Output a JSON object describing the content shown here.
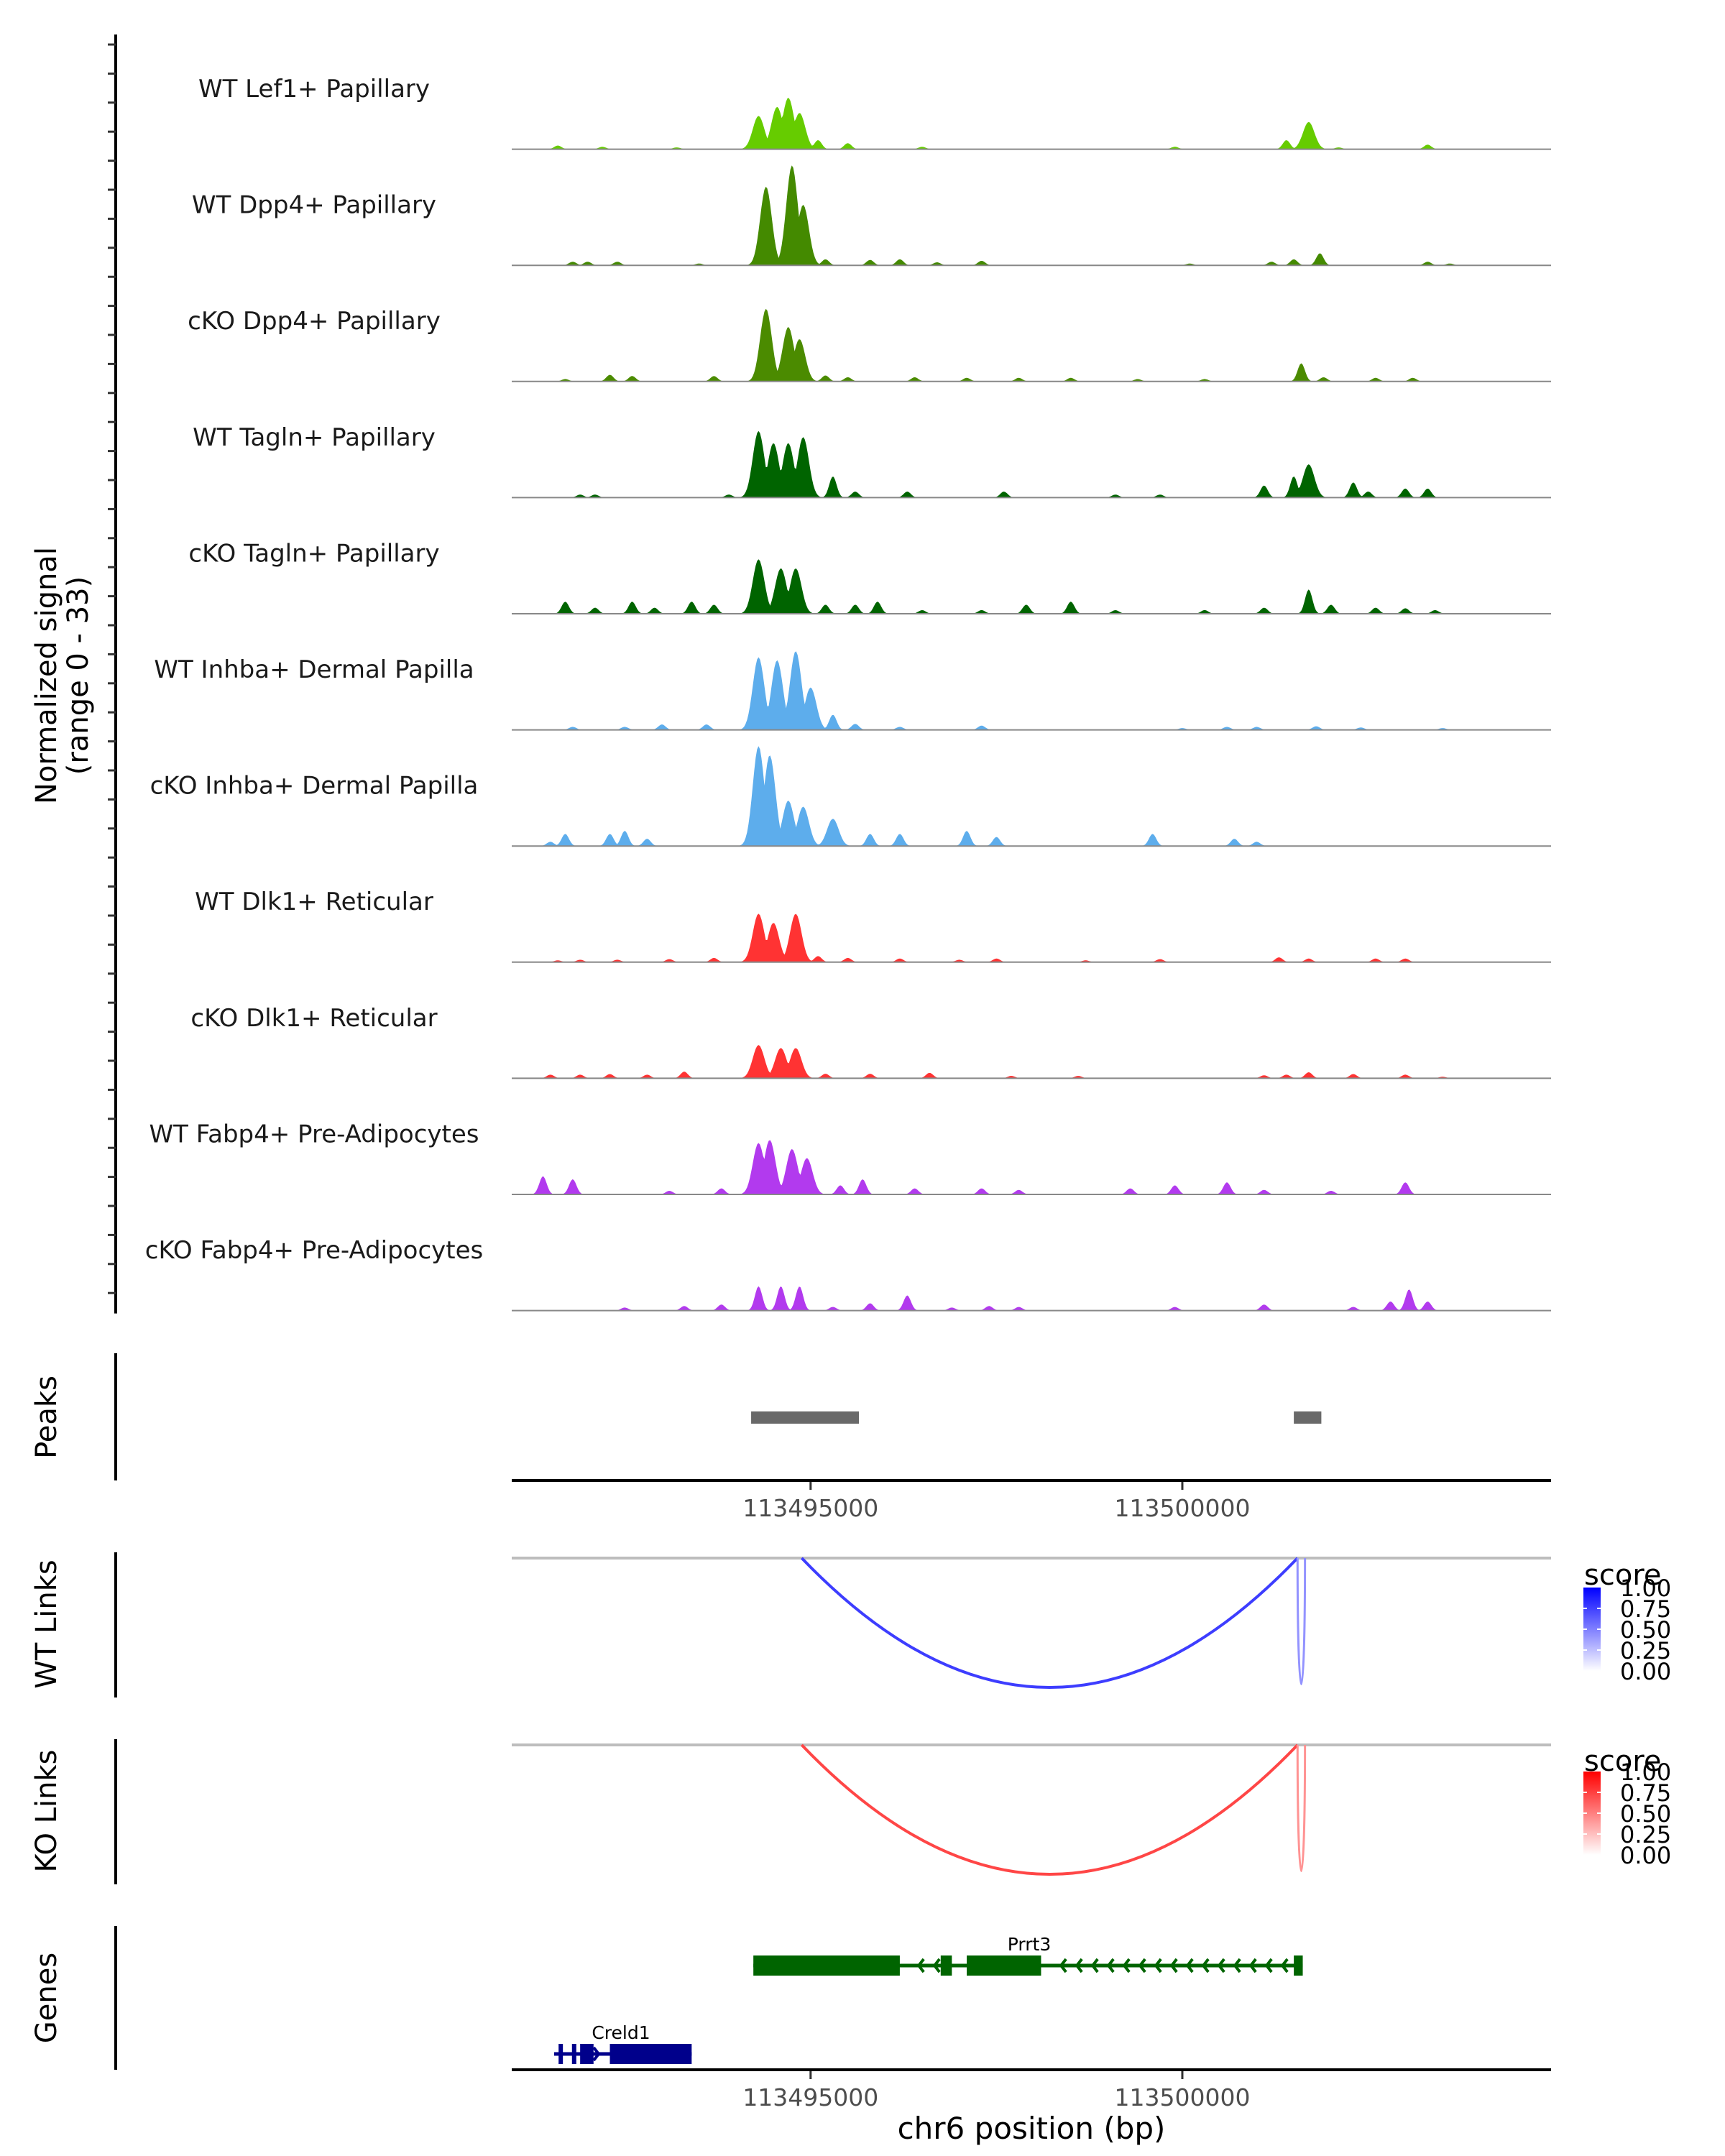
{
  "chart_data": {
    "type": "area",
    "title": "",
    "region": {
      "chrom": "chr6",
      "start": 113490980,
      "end": 113504960
    },
    "xlabel": "chr6 position (bp)",
    "x_ticks": [
      113495000,
      113500000
    ],
    "x_tick_labels": [
      "113495000",
      "113500000"
    ],
    "coverage": {
      "ylabel": "Normalized signal\n(range 0 - 33)",
      "ylabel_line1": "Normalized signal",
      "ylabel_line2": "(range 0 - 33)",
      "ylim": [
        0,
        33
      ],
      "tracks": [
        {
          "name": "WT Lef1+ Papillary",
          "color": "#66CC00",
          "peaks": [
            [
              113491600,
              1.2
            ],
            [
              113492200,
              0.8
            ],
            [
              113493200,
              0.6
            ],
            [
              113494300,
              11
            ],
            [
              113494550,
              14
            ],
            [
              113494700,
              17
            ],
            [
              113494850,
              12
            ],
            [
              113495100,
              3
            ],
            [
              113495500,
              2
            ],
            [
              113496500,
              0.8
            ],
            [
              113499900,
              0.8
            ],
            [
              113501400,
              3
            ],
            [
              113501700,
              9
            ],
            [
              113502100,
              0.6
            ],
            [
              113503300,
              1.5
            ]
          ]
        },
        {
          "name": "WT Dpp4+ Papillary",
          "color": "#448A00",
          "peaks": [
            [
              113491800,
              1.2
            ],
            [
              113492000,
              1.2
            ],
            [
              113492400,
              1.2
            ],
            [
              113493500,
              0.6
            ],
            [
              113494400,
              26
            ],
            [
              113494750,
              33
            ],
            [
              113494900,
              20
            ],
            [
              113495200,
              2
            ],
            [
              113495800,
              1.8
            ],
            [
              113496200,
              2
            ],
            [
              113496700,
              1
            ],
            [
              113497300,
              1.5
            ],
            [
              113500100,
              0.6
            ],
            [
              113501200,
              1.2
            ],
            [
              113501500,
              2
            ],
            [
              113501850,
              4
            ],
            [
              113503300,
              1.2
            ],
            [
              113503600,
              0.6
            ]
          ]
        },
        {
          "name": "cKO Dpp4+ Papillary",
          "color": "#4B8B00",
          "peaks": [
            [
              113491700,
              0.8
            ],
            [
              113492300,
              2.2
            ],
            [
              113492600,
              1.8
            ],
            [
              113493700,
              1.8
            ],
            [
              113494400,
              24
            ],
            [
              113494700,
              18
            ],
            [
              113494850,
              14
            ],
            [
              113495200,
              2
            ],
            [
              113495500,
              1.4
            ],
            [
              113496400,
              1.4
            ],
            [
              113497100,
              1.2
            ],
            [
              113497800,
              1.2
            ],
            [
              113498500,
              1.2
            ],
            [
              113499400,
              0.8
            ],
            [
              113500300,
              0.8
            ],
            [
              113501600,
              6
            ],
            [
              113501900,
              1.4
            ],
            [
              113502600,
              1.2
            ],
            [
              113503100,
              1.2
            ]
          ]
        },
        {
          "name": "WT Tagln+ Papillary",
          "color": "#006400",
          "peaks": [
            [
              113491900,
              1
            ],
            [
              113492100,
              1
            ],
            [
              113493900,
              1
            ],
            [
              113494300,
              22
            ],
            [
              113494500,
              18
            ],
            [
              113494700,
              18
            ],
            [
              113494900,
              20
            ],
            [
              113495300,
              7
            ],
            [
              113495600,
              2
            ],
            [
              113496300,
              2
            ],
            [
              113497600,
              2
            ],
            [
              113499100,
              1
            ],
            [
              113499700,
              1
            ],
            [
              113501100,
              4
            ],
            [
              113501500,
              7
            ],
            [
              113501700,
              11
            ],
            [
              113502300,
              5
            ],
            [
              113502500,
              2
            ],
            [
              113503000,
              3
            ],
            [
              113503300,
              3
            ]
          ]
        },
        {
          "name": "cKO Tagln+ Papillary",
          "color": "#006400",
          "peaks": [
            [
              113491700,
              4
            ],
            [
              113492100,
              2
            ],
            [
              113492600,
              4
            ],
            [
              113492900,
              2
            ],
            [
              113493400,
              4
            ],
            [
              113493700,
              3
            ],
            [
              113494300,
              18
            ],
            [
              113494600,
              15
            ],
            [
              113494800,
              15
            ],
            [
              113495200,
              3
            ],
            [
              113495600,
              3
            ],
            [
              113495900,
              4
            ],
            [
              113496500,
              1.2
            ],
            [
              113497300,
              1.2
            ],
            [
              113497900,
              3
            ],
            [
              113498500,
              4
            ],
            [
              113499100,
              1.2
            ],
            [
              113500300,
              1.2
            ],
            [
              113501100,
              2
            ],
            [
              113501700,
              8
            ],
            [
              113502000,
              3
            ],
            [
              113502600,
              2
            ],
            [
              113503000,
              1.8
            ],
            [
              113503400,
              1.2
            ]
          ]
        },
        {
          "name": "WT Inhba+ Dermal Papilla",
          "color": "#5DADEC",
          "peaks": [
            [
              113491800,
              1
            ],
            [
              113492500,
              1
            ],
            [
              113493000,
              1.8
            ],
            [
              113493600,
              1.8
            ],
            [
              113494300,
              24
            ],
            [
              113494550,
              23
            ],
            [
              113494800,
              26
            ],
            [
              113495000,
              14
            ],
            [
              113495300,
              5
            ],
            [
              113495600,
              2
            ],
            [
              113496200,
              1
            ],
            [
              113497300,
              1.4
            ],
            [
              113500000,
              0.6
            ],
            [
              113500600,
              1
            ],
            [
              113501000,
              1
            ],
            [
              113501800,
              1.2
            ],
            [
              113502400,
              0.8
            ],
            [
              113503500,
              0.6
            ]
          ]
        },
        {
          "name": "cKO Inhba+ Dermal Papilla",
          "color": "#5DADEC",
          "peaks": [
            [
              113491500,
              1.4
            ],
            [
              113491700,
              4
            ],
            [
              113492300,
              4
            ],
            [
              113492500,
              5
            ],
            [
              113492800,
              2.4
            ],
            [
              113494300,
              33
            ],
            [
              113494450,
              30
            ],
            [
              113494700,
              15
            ],
            [
              113494900,
              13
            ],
            [
              113495300,
              9
            ],
            [
              113495800,
              4
            ],
            [
              113496200,
              4
            ],
            [
              113497100,
              5
            ],
            [
              113497500,
              3
            ],
            [
              113499600,
              4
            ],
            [
              113500700,
              2.4
            ],
            [
              113501000,
              1.4
            ]
          ]
        },
        {
          "name": "WT Dlk1+ Reticular",
          "color": "#FF3333",
          "peaks": [
            [
              113491600,
              0.6
            ],
            [
              113491900,
              0.8
            ],
            [
              113492400,
              0.8
            ],
            [
              113493100,
              1
            ],
            [
              113493700,
              1.4
            ],
            [
              113494300,
              16
            ],
            [
              113494500,
              13
            ],
            [
              113494800,
              16
            ],
            [
              113495100,
              2
            ],
            [
              113495500,
              1.4
            ],
            [
              113496200,
              1.2
            ],
            [
              113497000,
              0.8
            ],
            [
              113497500,
              1.2
            ],
            [
              113498700,
              0.6
            ],
            [
              113499700,
              1
            ],
            [
              113501300,
              1.6
            ],
            [
              113501700,
              1.2
            ],
            [
              113502600,
              1.2
            ],
            [
              113503000,
              1.2
            ]
          ]
        },
        {
          "name": "cKO Dlk1+ Reticular",
          "color": "#FF3333",
          "peaks": [
            [
              113491500,
              1.2
            ],
            [
              113491900,
              1.2
            ],
            [
              113492300,
              1.4
            ],
            [
              113492800,
              1.2
            ],
            [
              113493300,
              2.2
            ],
            [
              113494300,
              11
            ],
            [
              113494600,
              10
            ],
            [
              113494800,
              10
            ],
            [
              113495200,
              1.5
            ],
            [
              113495800,
              1.5
            ],
            [
              113496600,
              1.8
            ],
            [
              113497700,
              0.8
            ],
            [
              113498600,
              0.8
            ],
            [
              113501100,
              1
            ],
            [
              113501400,
              1.2
            ],
            [
              113501700,
              2
            ],
            [
              113502300,
              1.4
            ],
            [
              113503000,
              1.2
            ],
            [
              113503500,
              0.5
            ]
          ]
        },
        {
          "name": "WT Fabp4+ Pre-Adipocytes",
          "color": "#B23AEE",
          "peaks": [
            [
              113491400,
              6
            ],
            [
              113491800,
              5
            ],
            [
              113493100,
              1.2
            ],
            [
              113493800,
              2
            ],
            [
              113494300,
              17
            ],
            [
              113494450,
              18
            ],
            [
              113494750,
              15
            ],
            [
              113494950,
              12
            ],
            [
              113495400,
              3
            ],
            [
              113495700,
              5
            ],
            [
              113496400,
              2
            ],
            [
              113497300,
              2
            ],
            [
              113497800,
              1.5
            ],
            [
              113499300,
              2
            ],
            [
              113499900,
              3
            ],
            [
              113500600,
              4
            ],
            [
              113501100,
              1.5
            ],
            [
              113502000,
              1.2
            ],
            [
              113503000,
              4
            ]
          ]
        },
        {
          "name": "cKO Fabp4+ Pre-Adipocytes",
          "color": "#B23AEE",
          "peaks": [
            [
              113492500,
              1
            ],
            [
              113493300,
              1.5
            ],
            [
              113493800,
              2
            ],
            [
              113494300,
              8
            ],
            [
              113494600,
              8
            ],
            [
              113494850,
              8
            ],
            [
              113495300,
              1.2
            ],
            [
              113495800,
              2.4
            ],
            [
              113496300,
              5
            ],
            [
              113496900,
              1
            ],
            [
              113497400,
              1.5
            ],
            [
              113497800,
              1.2
            ],
            [
              113499900,
              1.2
            ],
            [
              113501100,
              2
            ],
            [
              113502300,
              1.2
            ],
            [
              113502800,
              3
            ],
            [
              113503050,
              7
            ],
            [
              113503300,
              3
            ]
          ]
        }
      ]
    },
    "peaks": {
      "label": "Peaks",
      "color": "#696969",
      "intervals": [
        [
          113494200,
          113495650
        ],
        [
          113501500,
          113501870
        ]
      ]
    },
    "links": [
      {
        "label": "WT Links",
        "legend_title": "score",
        "color_high": "#0000FF",
        "color_low": "#FFFFFF",
        "legend_ticks": [
          "1.00",
          "0.75",
          "0.50",
          "0.25",
          "0.00"
        ],
        "arcs": [
          {
            "start": 113494880,
            "end": 113501550,
            "score": 0.75
          },
          {
            "start": 113501550,
            "end": 113501650,
            "score": 0.3
          }
        ]
      },
      {
        "label": "KO Links",
        "legend_title": "score",
        "color_high": "#FF0000",
        "color_low": "#FFFFFF",
        "legend_ticks": [
          "1.00",
          "0.75",
          "0.50",
          "0.25",
          "0.00"
        ],
        "arcs": [
          {
            "start": 113494880,
            "end": 113501550,
            "score": 0.7
          },
          {
            "start": 113501550,
            "end": 113501650,
            "score": 0.3
          }
        ]
      }
    ],
    "genes": {
      "label": "Genes",
      "items": [
        {
          "name": "Prrt3",
          "strand": "-",
          "color": "#006400",
          "row": 0,
          "start": 113494230,
          "end": 113501620,
          "exons": [
            [
              113494230,
              113496200
            ],
            [
              113496750,
              113496900
            ],
            [
              113497100,
              113498100
            ],
            [
              113501500,
              113501620
            ]
          ]
        },
        {
          "name": "Creld1",
          "strand": "+",
          "color": "#00008B",
          "row": 1,
          "start": 113491550,
          "end": 113493400,
          "exons": [
            [
              113491610,
              113491660
            ],
            [
              113491790,
              113491830
            ],
            [
              113491900,
              113492080
            ],
            [
              113492300,
              113493400
            ]
          ]
        }
      ]
    }
  }
}
